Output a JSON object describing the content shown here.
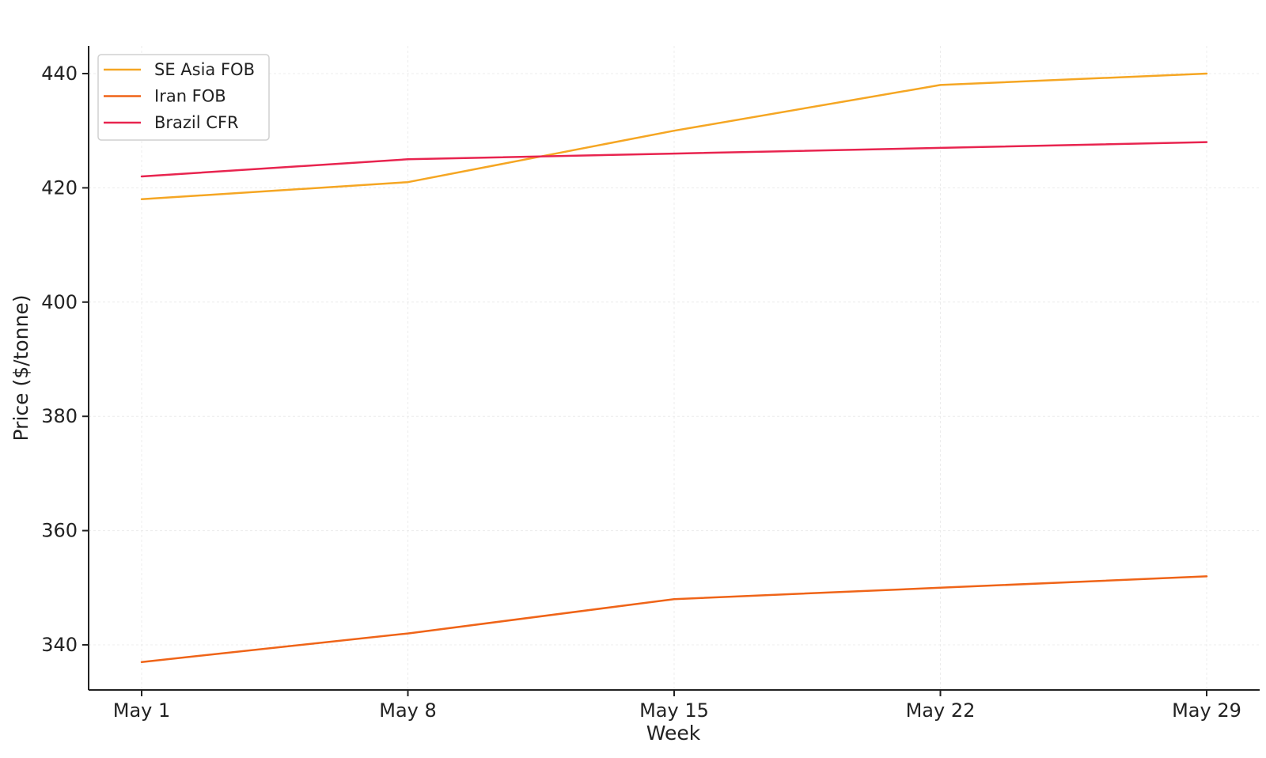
{
  "chart_data": {
    "type": "line",
    "title": "",
    "xlabel": "Week",
    "ylabel": "Price ($/tonne)",
    "categories": [
      "May 1",
      "May 8",
      "May 15",
      "May 22",
      "May 29"
    ],
    "ylim": [
      332,
      445
    ],
    "yticks": [
      340,
      360,
      380,
      400,
      420,
      440
    ],
    "grid": true,
    "legend_position": "top-left",
    "series": [
      {
        "name": "SE Asia FOB",
        "color": "#f5a623",
        "values": [
          418,
          421,
          430,
          438,
          440
        ]
      },
      {
        "name": "Iran FOB",
        "color": "#ef6418",
        "values": [
          337,
          342,
          348,
          350,
          352
        ]
      },
      {
        "name": "Brazil CFR",
        "color": "#e8244f",
        "values": [
          422,
          425,
          426,
          427,
          428
        ]
      }
    ]
  }
}
